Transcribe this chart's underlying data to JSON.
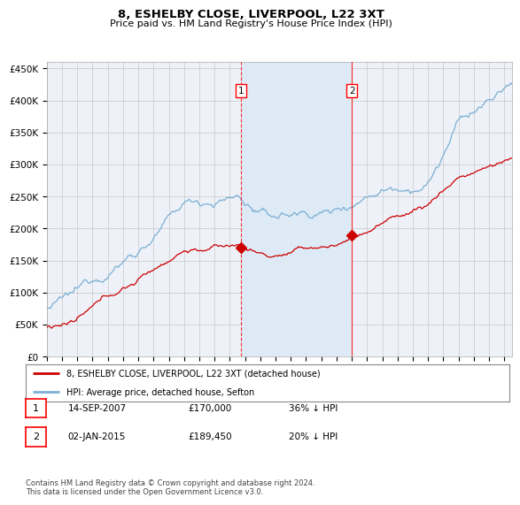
{
  "title": "8, ESHELBY CLOSE, LIVERPOOL, L22 3XT",
  "subtitle": "Price paid vs. HM Land Registry's House Price Index (HPI)",
  "hpi_color": "#7bafd4",
  "hpi_fill_color": "#ddeaf5",
  "price_color": "#cc0000",
  "background_color": "#ffffff",
  "plot_bg_color": "#eef2f8",
  "grid_color": "#c8c8c8",
  "ylim": [
    0,
    460000
  ],
  "yticks": [
    0,
    50000,
    100000,
    150000,
    200000,
    250000,
    300000,
    350000,
    400000,
    450000
  ],
  "sale1_x": 2007.71,
  "sale1_price": 170000,
  "sale2_x": 2015.01,
  "sale2_price": 189450,
  "legend_line1": "8, ESHELBY CLOSE, LIVERPOOL, L22 3XT (detached house)",
  "legend_line2": "HPI: Average price, detached house, Sefton",
  "note1_date": "14-SEP-2007",
  "note1_price": "£170,000",
  "note1_pct": "36% ↓ HPI",
  "note2_date": "02-JAN-2015",
  "note2_price": "£189,450",
  "note2_pct": "20% ↓ HPI",
  "footer": "Contains HM Land Registry data © Crown copyright and database right 2024.\nThis data is licensed under the Open Government Licence v3.0.",
  "xmin": 1995.0,
  "xmax": 2025.5
}
